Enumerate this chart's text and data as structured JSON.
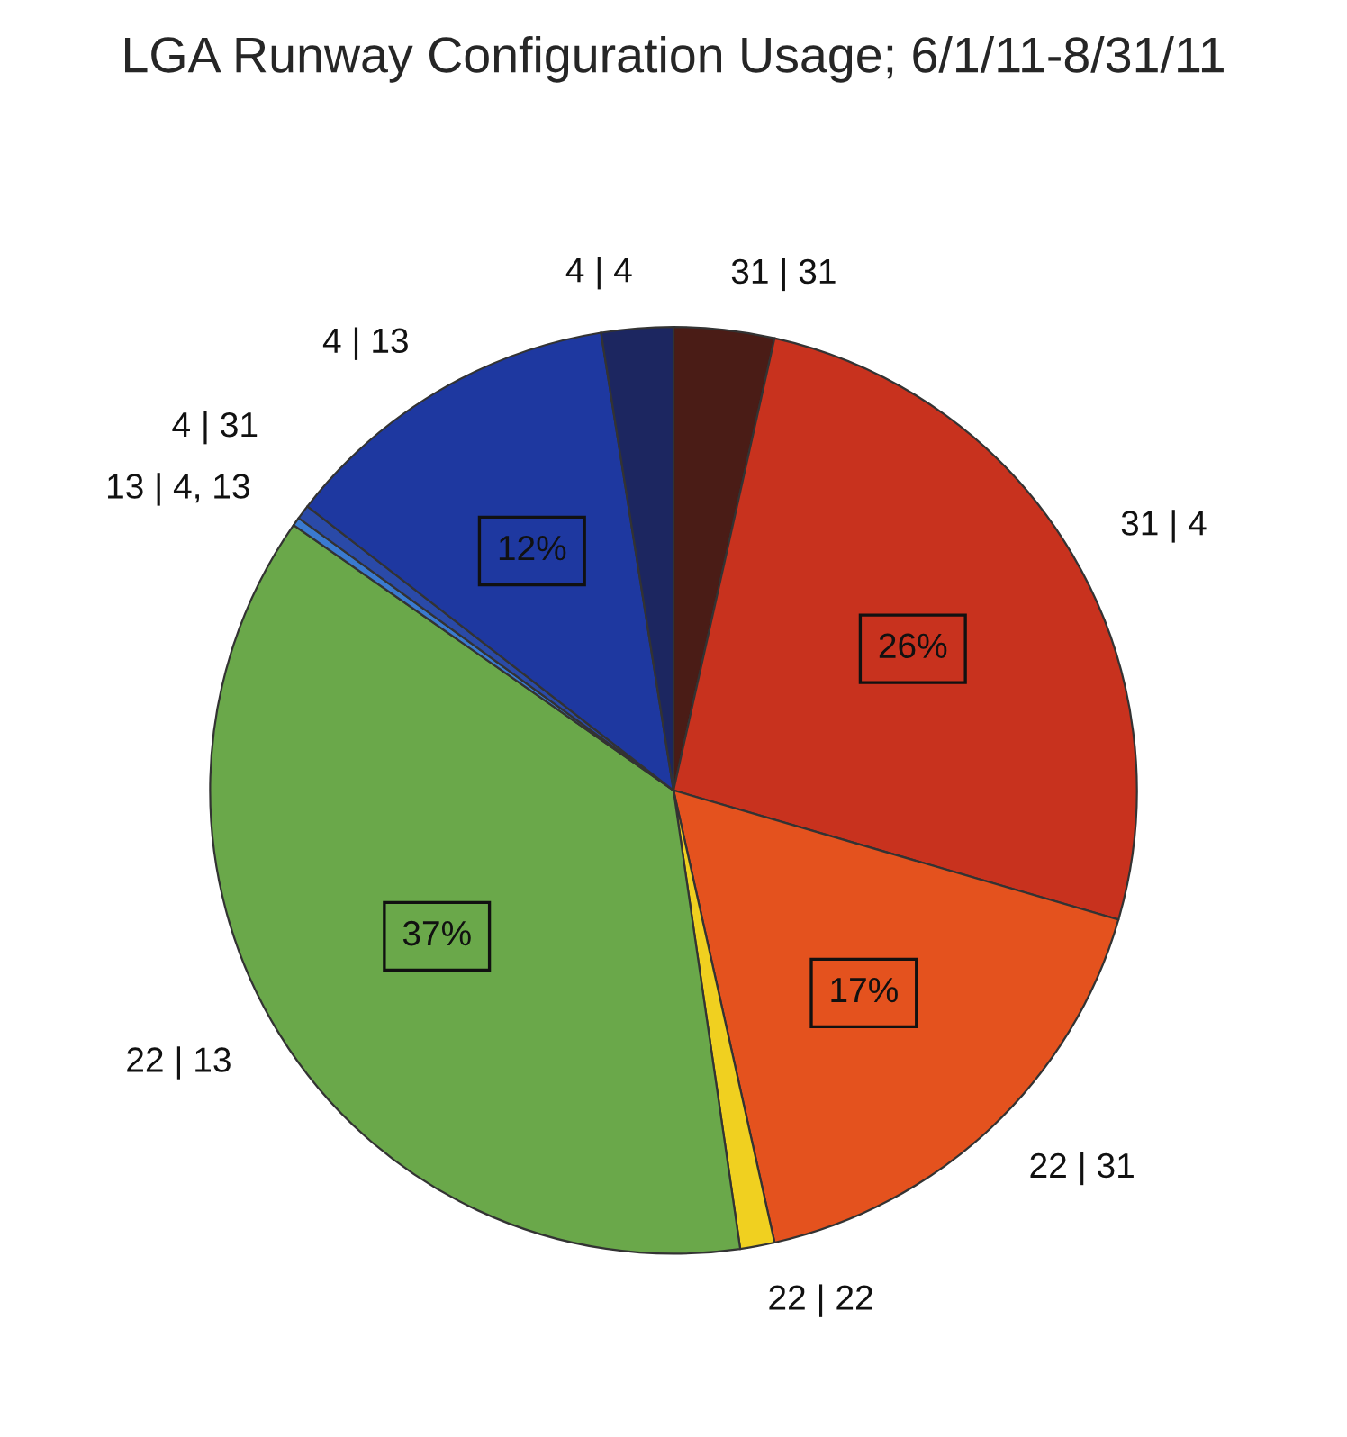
{
  "chart_data": {
    "type": "pie",
    "title": "LGA Runway Configuration Usage; 6/1/11-8/31/11",
    "categories": [
      "31 | 31",
      "31 | 4",
      "22 | 31",
      "22 | 22",
      "22 | 13",
      "13 | 4, 13",
      "4 | 31",
      "4 | 13",
      "4 | 4"
    ],
    "values": [
      3.5,
      26,
      17,
      1.2,
      37,
      0.3,
      0.5,
      12,
      2.5
    ],
    "value_labels": [
      null,
      "26%",
      "17%",
      null,
      "37%",
      null,
      null,
      "12%",
      null
    ],
    "colors": [
      "#4a1c16",
      "#c8321e",
      "#e4521e",
      "#f0d020",
      "#6aa84a",
      "#3a7ad0",
      "#2a4aa8",
      "#1e38a0",
      "#1c2660"
    ]
  }
}
